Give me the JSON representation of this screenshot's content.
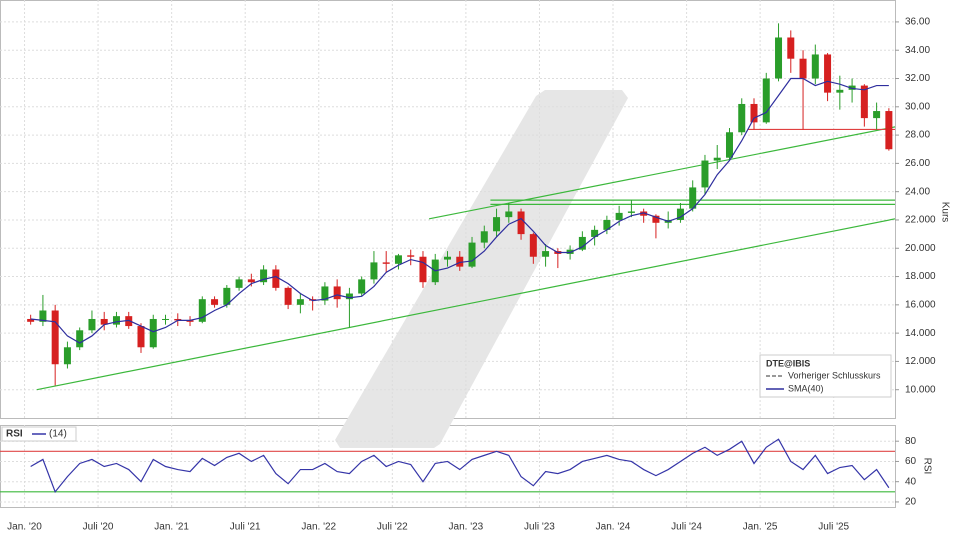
{
  "chart_data": [
    {
      "type": "candlestick",
      "y_label": "Kurs",
      "up_color": "#2a9d2a",
      "down_color": "#d62020",
      "x": [
        "2020-01",
        "2020-02",
        "2020-03",
        "2020-04",
        "2020-05",
        "2020-06",
        "2020-07",
        "2020-08",
        "2020-09",
        "2020-10",
        "2020-11",
        "2020-12",
        "2021-01",
        "2021-02",
        "2021-03",
        "2021-04",
        "2021-05",
        "2021-06",
        "2021-07",
        "2021-08",
        "2021-09",
        "2021-10",
        "2021-11",
        "2021-12",
        "2022-01",
        "2022-02",
        "2022-03",
        "2022-04",
        "2022-05",
        "2022-06",
        "2022-07",
        "2022-08",
        "2022-09",
        "2022-10",
        "2022-11",
        "2022-12",
        "2023-01",
        "2023-02",
        "2023-03",
        "2023-04",
        "2023-05",
        "2023-06",
        "2023-07",
        "2023-08",
        "2023-09",
        "2023-10",
        "2023-11",
        "2023-12",
        "2024-01",
        "2024-02",
        "2024-03",
        "2024-04",
        "2024-05",
        "2024-06",
        "2024-07",
        "2024-08",
        "2024-09",
        "2024-10",
        "2024-11",
        "2024-12",
        "2025-01",
        "2025-02",
        "2025-03",
        "2025-04",
        "2025-05",
        "2025-06",
        "2025-07",
        "2025-08",
        "2025-09",
        "2025-10",
        "2025-11"
      ],
      "open": [
        15.0,
        14.8,
        15.6,
        11.8,
        13.0,
        14.2,
        15.0,
        14.6,
        15.2,
        14.5,
        13.0,
        15.0,
        15.0,
        14.9,
        14.8,
        16.4,
        16.0,
        17.2,
        17.8,
        17.6,
        18.5,
        17.2,
        16.0,
        16.4,
        16.3,
        17.3,
        16.4,
        16.8,
        17.8,
        19.0,
        18.9,
        19.5,
        19.4,
        17.6,
        19.2,
        19.4,
        18.7,
        20.4,
        21.2,
        22.2,
        22.6,
        21.0,
        19.4,
        19.8,
        19.6,
        19.9,
        20.8,
        21.3,
        22.0,
        22.5,
        22.6,
        22.3,
        21.8,
        22.0,
        22.8,
        24.3,
        26.2,
        26.4,
        28.2,
        30.2,
        28.9,
        32.0,
        34.9,
        33.4,
        32.0,
        33.7,
        31.0,
        31.2,
        31.5,
        29.2,
        29.7
      ],
      "high": [
        15.3,
        16.7,
        16.0,
        13.4,
        14.4,
        15.6,
        15.5,
        15.5,
        15.5,
        14.7,
        15.3,
        15.3,
        15.4,
        15.2,
        16.6,
        16.6,
        17.4,
        18.0,
        18.2,
        18.8,
        18.8,
        17.3,
        16.8,
        16.6,
        17.6,
        17.8,
        17.2,
        18.0,
        19.8,
        19.8,
        19.6,
        19.9,
        19.8,
        19.6,
        19.8,
        19.8,
        20.8,
        21.6,
        22.8,
        23.2,
        22.8,
        21.1,
        20.3,
        20.0,
        20.2,
        21.2,
        21.6,
        22.3,
        23.0,
        23.4,
        22.8,
        22.4,
        22.6,
        23.2,
        24.8,
        26.6,
        27.3,
        28.5,
        30.6,
        30.6,
        32.4,
        35.9,
        35.4,
        34.0,
        34.4,
        33.8,
        32.2,
        32.0,
        31.6,
        30.3,
        29.9
      ],
      "low": [
        14.6,
        14.5,
        10.3,
        11.5,
        12.8,
        14.0,
        14.2,
        14.4,
        14.3,
        12.6,
        12.9,
        14.6,
        14.5,
        14.5,
        14.7,
        15.8,
        15.8,
        17.0,
        17.3,
        17.4,
        17.0,
        15.7,
        15.4,
        15.6,
        16.0,
        15.8,
        14.4,
        16.6,
        17.5,
        18.3,
        18.5,
        18.8,
        17.2,
        17.4,
        18.7,
        18.4,
        18.6,
        20.0,
        20.8,
        21.8,
        20.6,
        18.9,
        18.7,
        18.6,
        19.2,
        19.8,
        20.2,
        21.0,
        21.6,
        22.2,
        21.8,
        20.7,
        21.4,
        21.8,
        22.6,
        23.8,
        25.6,
        26.2,
        28.0,
        28.4,
        28.8,
        31.8,
        32.4,
        28.4,
        31.6,
        30.4,
        29.8,
        30.3,
        28.6,
        28.4,
        26.9
      ],
      "close": [
        14.8,
        15.6,
        11.8,
        13.0,
        14.2,
        15.0,
        14.6,
        15.2,
        14.5,
        13.0,
        15.0,
        15.0,
        14.9,
        14.8,
        16.4,
        16.0,
        17.2,
        17.8,
        17.6,
        18.5,
        17.2,
        16.0,
        16.4,
        16.3,
        17.3,
        16.4,
        16.8,
        17.8,
        19.0,
        18.9,
        19.5,
        19.4,
        17.6,
        19.2,
        19.4,
        18.7,
        20.4,
        21.2,
        22.2,
        22.6,
        21.0,
        19.4,
        19.8,
        19.6,
        19.9,
        20.8,
        21.3,
        22.0,
        22.5,
        22.6,
        22.3,
        21.8,
        22.0,
        22.8,
        24.3,
        26.2,
        26.4,
        28.2,
        30.2,
        28.9,
        32.0,
        34.9,
        33.4,
        32.0,
        33.7,
        31.0,
        31.2,
        31.5,
        29.2,
        29.7,
        27.0
      ],
      "series": [
        {
          "name": "SMA(40)",
          "color": "#2e2e9e",
          "values": [
            15.0,
            14.9,
            14.8,
            13.8,
            13.3,
            13.8,
            14.6,
            14.8,
            14.9,
            14.5,
            14.1,
            14.4,
            14.9,
            14.9,
            15.1,
            15.6,
            16.0,
            16.8,
            17.5,
            17.8,
            18.0,
            17.5,
            16.8,
            16.3,
            16.4,
            16.7,
            16.5,
            16.6,
            17.3,
            18.3,
            18.8,
            19.2,
            19.0,
            18.4,
            18.6,
            19.0,
            19.1,
            19.8,
            20.8,
            21.7,
            22.1,
            21.2,
            20.2,
            19.7,
            19.7,
            20.1,
            20.8,
            21.3,
            21.9,
            22.3,
            22.5,
            22.2,
            21.9,
            22.2,
            22.8,
            23.8,
            25.2,
            26.2,
            27.6,
            29.2,
            29.6,
            30.8,
            32.0,
            32.0,
            31.5,
            31.8,
            31.6,
            31.3,
            31.2,
            31.5,
            31.5
          ]
        }
      ],
      "legend": {
        "title": "DTE@IBIS",
        "entries": [
          "Vorheriger Schlusskurs"
        ]
      },
      "lines": [
        {
          "x": [
            "2020-02",
            "2025-12"
          ],
          "y": [
            10.0,
            22.08
          ],
          "color": "#3cb83c"
        },
        {
          "x": [
            "2022-10",
            "2025-12"
          ],
          "y": [
            22.08,
            28.58
          ],
          "color": "#3cb83c"
        },
        {
          "x": [
            "2023-03",
            "2025-12"
          ],
          "y": [
            23.4,
            23.4
          ],
          "color": "#3cb83c"
        },
        {
          "x": [
            "2023-03",
            "2025-12"
          ],
          "y": [
            23.1,
            23.1
          ],
          "color": "#3cb83c"
        },
        {
          "x": [
            "2024-12",
            "2025-12"
          ],
          "y": [
            28.4,
            28.4
          ],
          "color": "#e04040"
        }
      ],
      "xlim": [
        "2019-11",
        "2025-12"
      ],
      "ylim": [
        8,
        37.55
      ],
      "yticks": [
        {
          "value": 36,
          "label": "36.00"
        },
        {
          "value": 34,
          "label": "34.00"
        },
        {
          "value": 32,
          "label": "32.00"
        },
        {
          "value": 30,
          "label": "30.00"
        },
        {
          "value": 28,
          "label": "28.00"
        },
        {
          "value": 26,
          "label": "26.00"
        },
        {
          "value": 24,
          "label": "24.00"
        },
        {
          "value": 22,
          "label": "22.000"
        },
        {
          "value": 20,
          "label": "20.000"
        },
        {
          "value": 18,
          "label": "18.000"
        },
        {
          "value": 16,
          "label": "16.000"
        },
        {
          "value": 14,
          "label": "14.000"
        },
        {
          "value": 12,
          "label": "12.000"
        },
        {
          "value": 10,
          "label": "10.000"
        }
      ],
      "grid": true
    },
    {
      "type": "line",
      "title": "RSI",
      "y_label": "RSI",
      "x": [
        "2020-01",
        "2020-02",
        "2020-03",
        "2020-04",
        "2020-05",
        "2020-06",
        "2020-07",
        "2020-08",
        "2020-09",
        "2020-10",
        "2020-11",
        "2020-12",
        "2021-01",
        "2021-02",
        "2021-03",
        "2021-04",
        "2021-05",
        "2021-06",
        "2021-07",
        "2021-08",
        "2021-09",
        "2021-10",
        "2021-11",
        "2021-12",
        "2022-01",
        "2022-02",
        "2022-03",
        "2022-04",
        "2022-05",
        "2022-06",
        "2022-07",
        "2022-08",
        "2022-09",
        "2022-10",
        "2022-11",
        "2022-12",
        "2023-01",
        "2023-02",
        "2023-03",
        "2023-04",
        "2023-05",
        "2023-06",
        "2023-07",
        "2023-08",
        "2023-09",
        "2023-10",
        "2023-11",
        "2023-12",
        "2024-01",
        "2024-02",
        "2024-03",
        "2024-04",
        "2024-05",
        "2024-06",
        "2024-07",
        "2024-08",
        "2024-09",
        "2024-10",
        "2024-11",
        "2024-12",
        "2025-01",
        "2025-02",
        "2025-03",
        "2025-04",
        "2025-05",
        "2025-06",
        "2025-07",
        "2025-08",
        "2025-09",
        "2025-10",
        "2025-11"
      ],
      "series": [
        {
          "name": "(14)",
          "color": "#3535a8",
          "values": [
            55,
            62,
            30,
            45,
            58,
            62,
            55,
            58,
            52,
            40,
            62,
            55,
            52,
            50,
            63,
            56,
            64,
            68,
            60,
            66,
            48,
            38,
            52,
            52,
            58,
            50,
            48,
            60,
            66,
            55,
            60,
            57,
            40,
            58,
            60,
            52,
            62,
            66,
            70,
            66,
            45,
            36,
            50,
            48,
            52,
            60,
            63,
            66,
            62,
            60,
            52,
            46,
            52,
            60,
            68,
            74,
            66,
            72,
            80,
            58,
            74,
            82,
            60,
            52,
            66,
            48,
            54,
            56,
            42,
            52,
            34
          ]
        }
      ],
      "hlines": [
        {
          "y": 70,
          "color": "#e04848"
        },
        {
          "y": 30,
          "color": "#3cb83c"
        }
      ],
      "xlim": [
        "2019-11",
        "2025-12"
      ],
      "ylim": [
        15,
        96
      ],
      "yticks": [
        20,
        40,
        60,
        80
      ],
      "xticks": [
        {
          "value": "2020-01",
          "label": "Jan. '20"
        },
        {
          "value": "2020-07",
          "label": "Juli '20"
        },
        {
          "value": "2021-01",
          "label": "Jan. '21"
        },
        {
          "value": "2021-07",
          "label": "Juli '21"
        },
        {
          "value": "2022-01",
          "label": "Jan. '22"
        },
        {
          "value": "2022-07",
          "label": "Juli '22"
        },
        {
          "value": "2023-01",
          "label": "Jan. '23"
        },
        {
          "value": "2023-07",
          "label": "Juli '23"
        },
        {
          "value": "2024-01",
          "label": "Jan. '24"
        },
        {
          "value": "2024-07",
          "label": "Juli '24"
        },
        {
          "value": "2025-01",
          "label": "Jan. '25"
        },
        {
          "value": "2025-07",
          "label": "Juli '25"
        }
      ],
      "grid": true
    }
  ]
}
